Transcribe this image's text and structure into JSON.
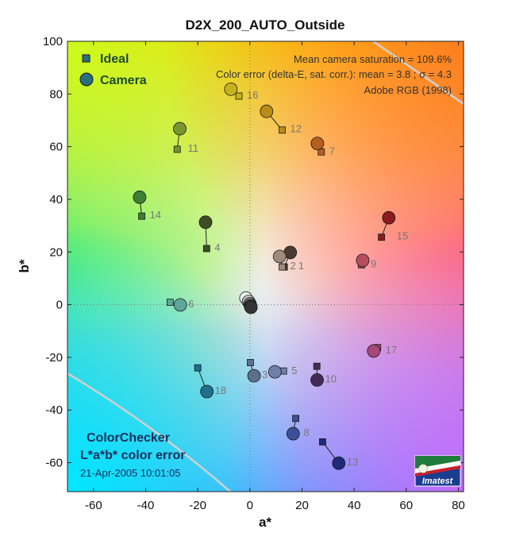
{
  "chart_data": {
    "type": "scatter",
    "title": "D2X_200_AUTO_Outside",
    "xlabel": "a*",
    "ylabel": "b*",
    "xlim": [
      -70,
      82
    ],
    "ylim": [
      -71,
      100
    ],
    "xticks": [
      -60,
      -40,
      -20,
      0,
      20,
      40,
      60,
      80
    ],
    "yticks": [
      100,
      80,
      60,
      40,
      20,
      0,
      -20,
      -40,
      -60
    ],
    "grid": "dotted zero lines",
    "legend": {
      "placement": "top-left",
      "ideal_label": "Ideal",
      "camera_label": "Camera"
    },
    "info_lines": [
      "Mean camera saturation = 109.6%",
      "Color error (delta-E, sat. corr.):  mean = 3.8 ;  σ = 4.3",
      "Adobe RGB (1998)"
    ],
    "footer": {
      "line1": "ColorChecker",
      "line2": "L*a*b* color error",
      "date": "21-Apr-2005 10:01:05"
    },
    "logo_text": "Imatest",
    "points": [
      {
        "label": "1",
        "ideal": [
          13.2,
          14.3
        ],
        "camera": [
          15.5,
          19.8
        ],
        "color": "#4a3a30"
      },
      {
        "label": "2",
        "ideal": [
          12.4,
          14.3
        ],
        "camera": [
          11.4,
          18.3
        ],
        "color": "#a08a7c"
      },
      {
        "label": "3",
        "ideal": [
          0.2,
          -22.0
        ],
        "camera": [
          1.6,
          -27.0
        ],
        "color": "#5c6f8c"
      },
      {
        "label": "4",
        "ideal": [
          -16.6,
          21.3
        ],
        "camera": [
          -17.0,
          31.3
        ],
        "color": "#3e4d25"
      },
      {
        "label": "5",
        "ideal": [
          12.9,
          -25.2
        ],
        "camera": [
          9.6,
          -25.5
        ],
        "color": "#6e7fa8"
      },
      {
        "label": "6",
        "ideal": [
          -30.6,
          0.9
        ],
        "camera": [
          -26.7,
          -0.1
        ],
        "color": "#5da89a"
      },
      {
        "label": "7",
        "ideal": [
          27.4,
          58.0
        ],
        "camera": [
          25.9,
          61.2
        ],
        "color": "#b55e22"
      },
      {
        "label": "8",
        "ideal": [
          17.6,
          -43.2
        ],
        "camera": [
          16.6,
          -49.0
        ],
        "color": "#3c4f9a"
      },
      {
        "label": "9",
        "ideal": [
          42.8,
          15.1
        ],
        "camera": [
          43.3,
          16.8
        ],
        "color": "#b74d5f"
      },
      {
        "label": "10",
        "ideal": [
          25.7,
          -23.4
        ],
        "camera": [
          25.8,
          -28.6
        ],
        "color": "#412b55"
      },
      {
        "label": "11",
        "ideal": [
          -27.9,
          59.0
        ],
        "camera": [
          -26.9,
          66.8
        ],
        "color": "#78962d"
      },
      {
        "label": "12",
        "ideal": [
          12.4,
          66.3
        ],
        "camera": [
          6.4,
          73.4
        ],
        "color": "#b98b17"
      },
      {
        "label": "13",
        "ideal": [
          27.9,
          -52.1
        ],
        "camera": [
          34.1,
          -60.2
        ],
        "color": "#1f2a78"
      },
      {
        "label": "14",
        "ideal": [
          -41.5,
          33.6
        ],
        "camera": [
          -42.3,
          40.8
        ],
        "color": "#3f7e35"
      },
      {
        "label": "15",
        "ideal": [
          50.5,
          25.6
        ],
        "camera": [
          53.3,
          33.0
        ],
        "color": "#8c1b1b"
      },
      {
        "label": "16",
        "ideal": [
          -4.2,
          79.2
        ],
        "camera": [
          -7.3,
          81.8
        ],
        "color": "#c7b21b"
      },
      {
        "label": "17",
        "ideal": [
          49.0,
          -16.3
        ],
        "camera": [
          47.5,
          -17.6
        ],
        "color": "#a8477c"
      },
      {
        "label": "18",
        "ideal": [
          -20.0,
          -24.0
        ],
        "camera": [
          -16.5,
          -33.0
        ],
        "color": "#1f6f8f"
      },
      {
        "label": "",
        "ideal": [
          -0.5,
          1.5
        ],
        "camera": [
          -1.5,
          2.5
        ],
        "color": "#f2f2f2"
      },
      {
        "label": "",
        "ideal": [
          -0.5,
          0.5
        ],
        "camera": [
          -0.5,
          1.2
        ],
        "color": "#c8c8c8"
      },
      {
        "label": "",
        "ideal": [
          0.0,
          0.0
        ],
        "camera": [
          0.0,
          0.3
        ],
        "color": "#a0a0a0"
      },
      {
        "label": "",
        "ideal": [
          0.0,
          -0.3
        ],
        "camera": [
          0.2,
          -0.3
        ],
        "color": "#7a7a7a"
      },
      {
        "label": "",
        "ideal": [
          0.0,
          -0.6
        ],
        "camera": [
          0.3,
          -0.7
        ],
        "color": "#555555"
      },
      {
        "label": "",
        "ideal": [
          0.0,
          -0.9
        ],
        "camera": [
          0.4,
          -1.0
        ],
        "color": "#333333"
      }
    ]
  }
}
